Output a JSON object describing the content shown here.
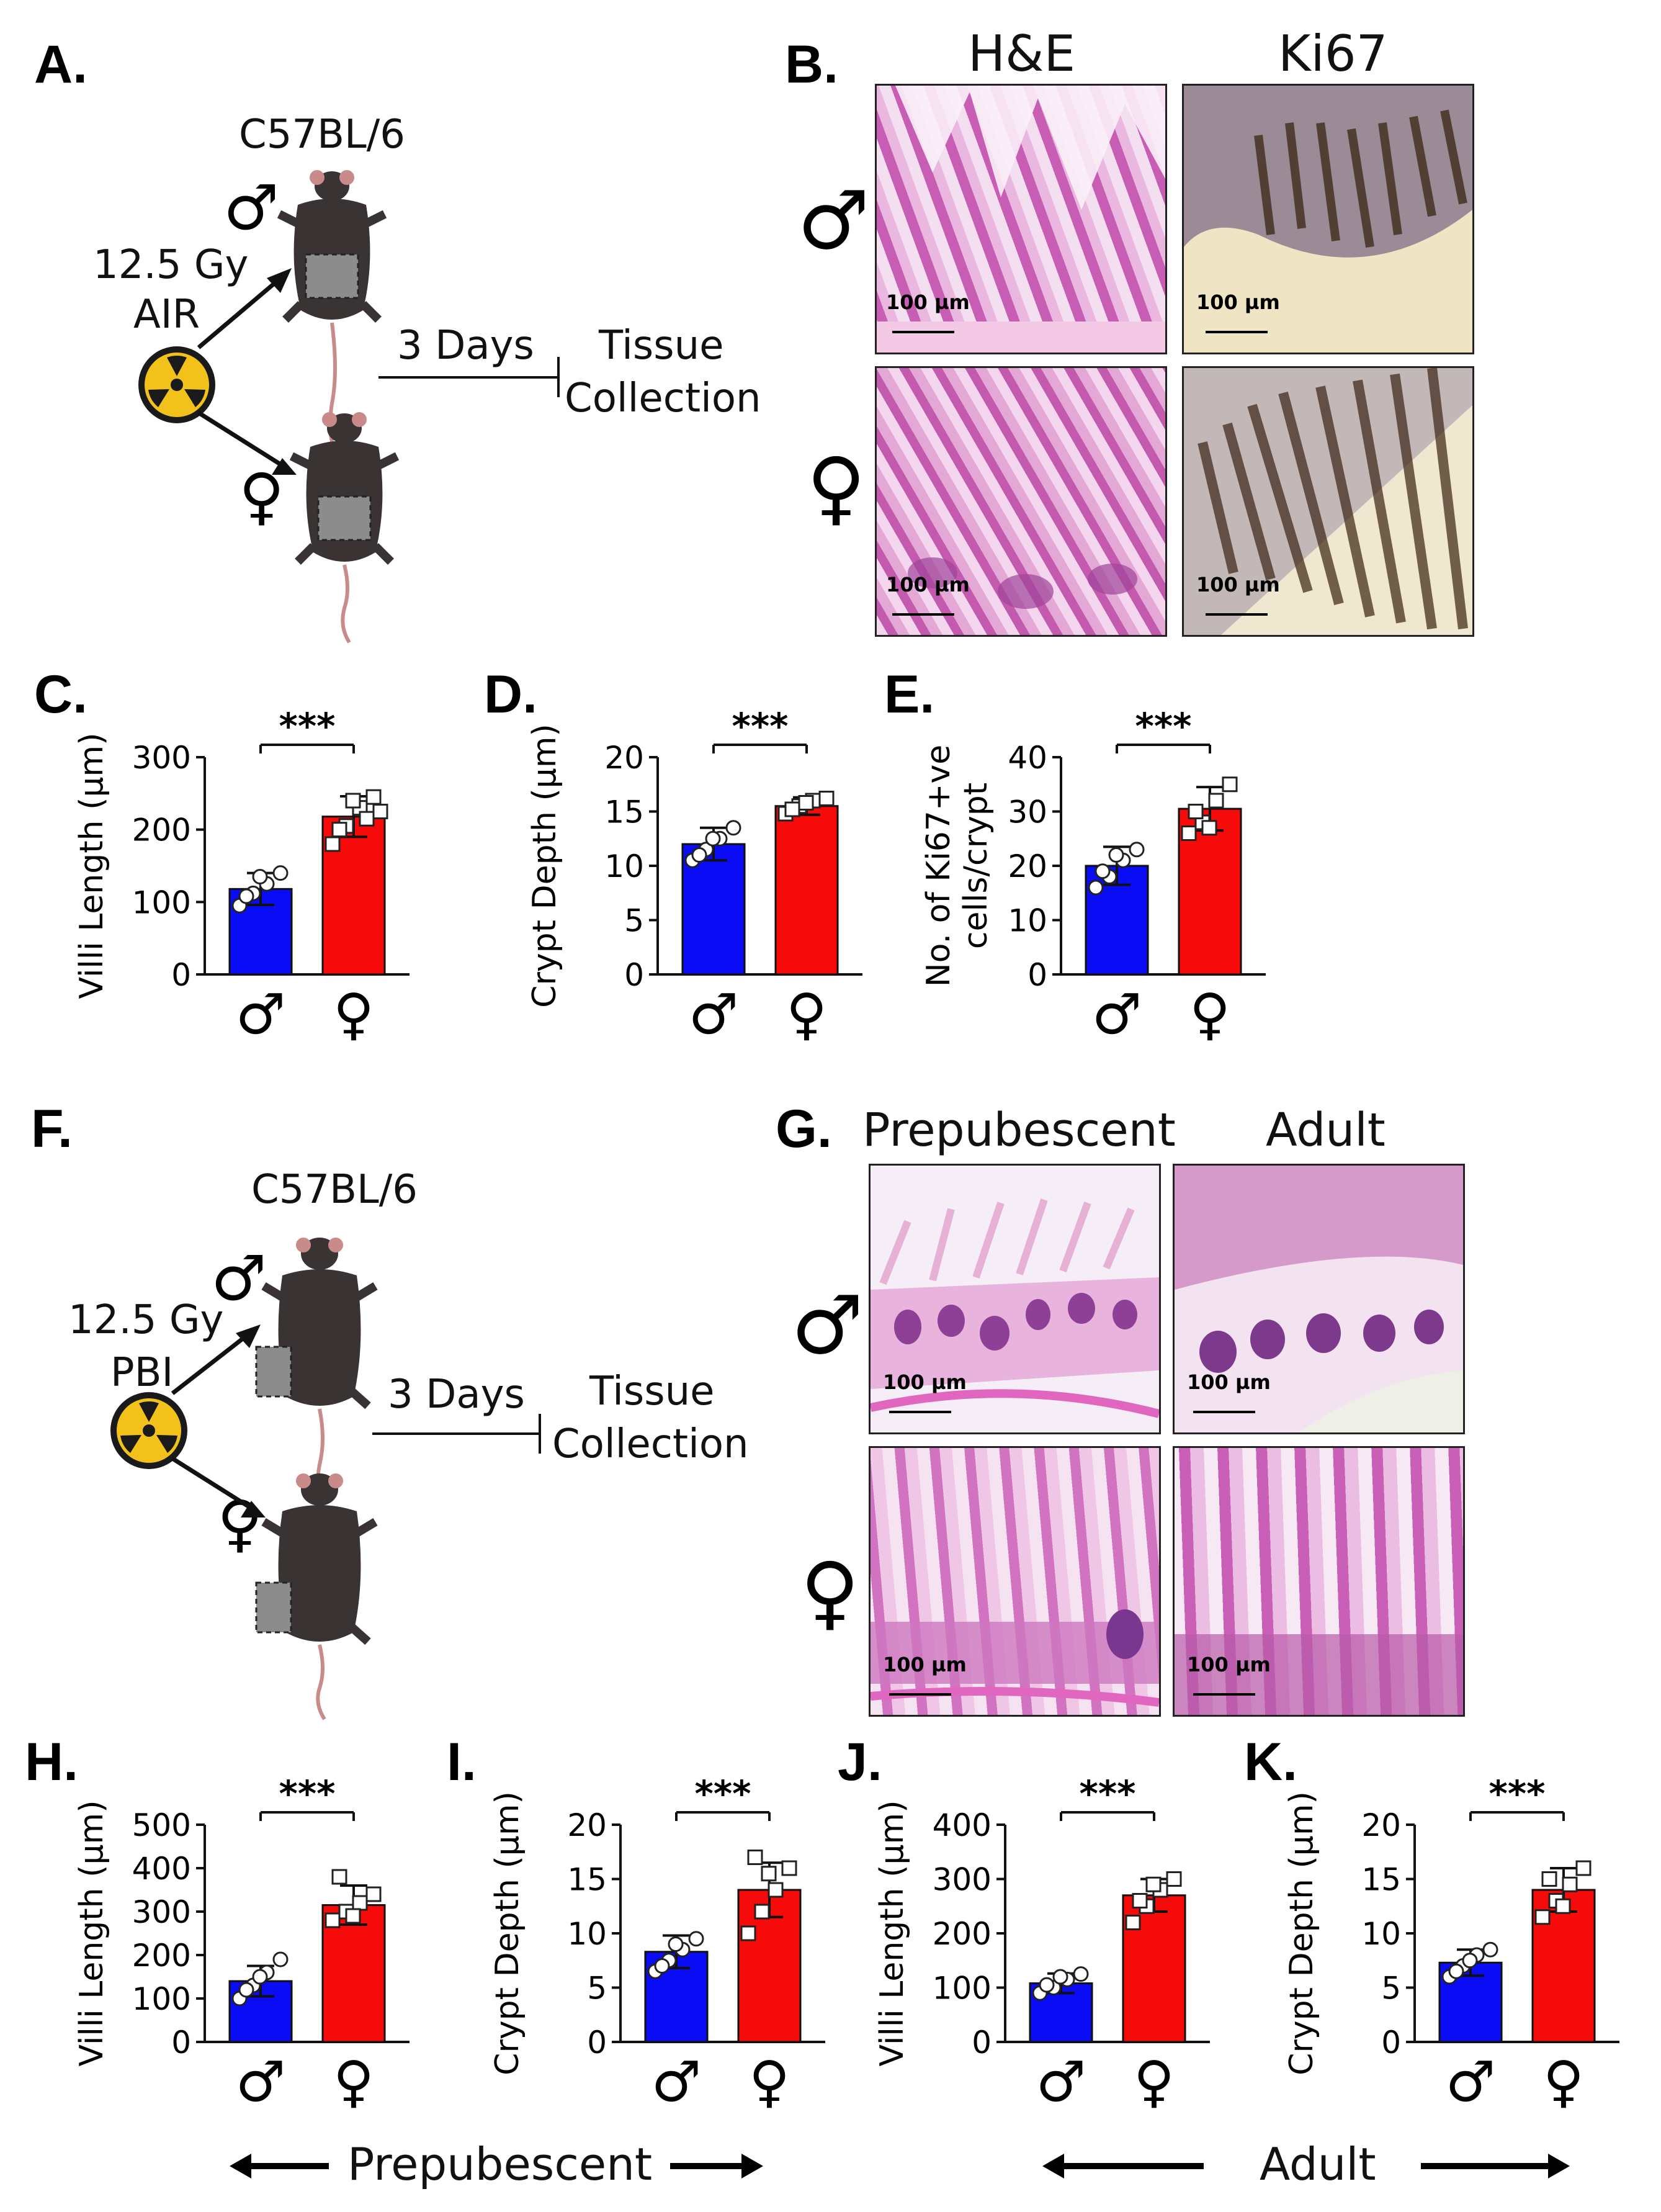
{
  "panels": {
    "A": {
      "letter": "A.",
      "strain": "C57BL/6",
      "dose": "12.5 Gy",
      "mode": "AIR",
      "days": "3 Days",
      "outcome_line1": "Tissue",
      "outcome_line2": "Collection",
      "male_symbol": "♂",
      "female_symbol": "♀"
    },
    "B": {
      "letter": "B.",
      "col1": "H&E",
      "col2": "Ki67",
      "scale_label": "100 µm",
      "male_symbol": "♂",
      "female_symbol": "♀"
    },
    "F": {
      "letter": "F.",
      "strain": "C57BL/6",
      "dose": "12.5 Gy",
      "mode": "PBI",
      "days": "3 Days",
      "outcome_line1": "Tissue",
      "outcome_line2": "Collection",
      "male_symbol": "♂",
      "female_symbol": "♀"
    },
    "G": {
      "letter": "G.",
      "col1": "Prepubescent",
      "col2": "Adult",
      "scale_label": "100 µm",
      "male_symbol": "♂",
      "female_symbol": "♀"
    }
  },
  "colors": {
    "male_bar": "#0a0cf5",
    "female_bar": "#f70a0a",
    "he_stain": "#d86fc4",
    "ki67_stain": "#5a3a1a"
  },
  "bottom": {
    "prepubescent": "Prepubescent",
    "adult": "Adult"
  },
  "chart_data": [
    {
      "id": "C",
      "letter": "C.",
      "type": "bar",
      "categories": [
        "♂",
        "♀"
      ],
      "values": [
        118,
        218
      ],
      "errors": [
        22,
        28
      ],
      "ylabel": "Villi Length (µm)",
      "ylim": [
        0,
        300
      ],
      "yticks": [
        0,
        100,
        200,
        300
      ],
      "significance": "***",
      "points": [
        [
          95,
          112,
          125,
          140,
          108,
          135
        ],
        [
          180,
          205,
          230,
          245,
          200,
          240,
          215,
          225
        ]
      ]
    },
    {
      "id": "D",
      "letter": "D.",
      "type": "bar",
      "categories": [
        "♂",
        "♀"
      ],
      "values": [
        12,
        15.5
      ],
      "errors": [
        1.5,
        0.8
      ],
      "ylabel": "Crypt Depth (µm)",
      "ylim": [
        0,
        20
      ],
      "yticks": [
        0,
        5,
        10,
        15,
        20
      ],
      "significance": "***",
      "points": [
        [
          10.5,
          11.5,
          12.5,
          13.5,
          11,
          12.5
        ],
        [
          14.8,
          15.5,
          16,
          16.2,
          15.2,
          15.8
        ]
      ]
    },
    {
      "id": "E",
      "letter": "E.",
      "type": "bar",
      "categories": [
        "♂",
        "♀"
      ],
      "values": [
        20,
        30.5
      ],
      "errors": [
        3.5,
        4
      ],
      "ylabel": "No. of Ki67+ve\ncells/crypt",
      "ylim": [
        0,
        40
      ],
      "yticks": [
        0,
        10,
        20,
        30,
        40
      ],
      "significance": "***",
      "points": [
        [
          16,
          18,
          21,
          23,
          19,
          22
        ],
        [
          26,
          28,
          32,
          35,
          30,
          27
        ]
      ]
    },
    {
      "id": "H",
      "letter": "H.",
      "type": "bar",
      "categories": [
        "♂",
        "♀"
      ],
      "values": [
        140,
        315
      ],
      "errors": [
        35,
        45
      ],
      "ylabel": "Villi Length (µm)",
      "ylim": [
        0,
        500
      ],
      "yticks": [
        0,
        100,
        200,
        300,
        400,
        500
      ],
      "significance": "***",
      "points": [
        [
          100,
          130,
          160,
          190,
          120,
          150
        ],
        [
          280,
          300,
          320,
          340,
          380,
          290
        ]
      ]
    },
    {
      "id": "I",
      "letter": "I.",
      "type": "bar",
      "categories": [
        "♂",
        "♀"
      ],
      "values": [
        8.3,
        14
      ],
      "errors": [
        1.5,
        2.5
      ],
      "ylabel": "Crypt Depth (µm)",
      "ylim": [
        0,
        20
      ],
      "yticks": [
        0,
        5,
        10,
        15,
        20
      ],
      "significance": "***",
      "points": [
        [
          6.5,
          7.5,
          8.5,
          9.5,
          7,
          9
        ],
        [
          10,
          12,
          14,
          16,
          17,
          15.5
        ]
      ]
    },
    {
      "id": "J",
      "letter": "J.",
      "type": "bar",
      "categories": [
        "♂",
        "♀"
      ],
      "values": [
        108,
        270
      ],
      "errors": [
        18,
        30
      ],
      "ylabel": "Villi Length (µm)",
      "ylim": [
        0,
        400
      ],
      "yticks": [
        0,
        100,
        200,
        300,
        400
      ],
      "significance": "***",
      "points": [
        [
          90,
          100,
          115,
          125,
          105,
          120
        ],
        [
          220,
          250,
          280,
          300,
          260,
          290
        ]
      ]
    },
    {
      "id": "K",
      "letter": "K.",
      "type": "bar",
      "categories": [
        "♂",
        "♀"
      ],
      "values": [
        7.3,
        14
      ],
      "errors": [
        1.2,
        2
      ],
      "ylabel": "Crypt Depth (µm)",
      "ylim": [
        0,
        20
      ],
      "yticks": [
        0,
        5,
        10,
        15,
        20
      ],
      "significance": "***",
      "points": [
        [
          6,
          7,
          8,
          8.5,
          6.5,
          7.5
        ],
        [
          11.5,
          13,
          14.5,
          16,
          15,
          12.5
        ]
      ]
    }
  ]
}
